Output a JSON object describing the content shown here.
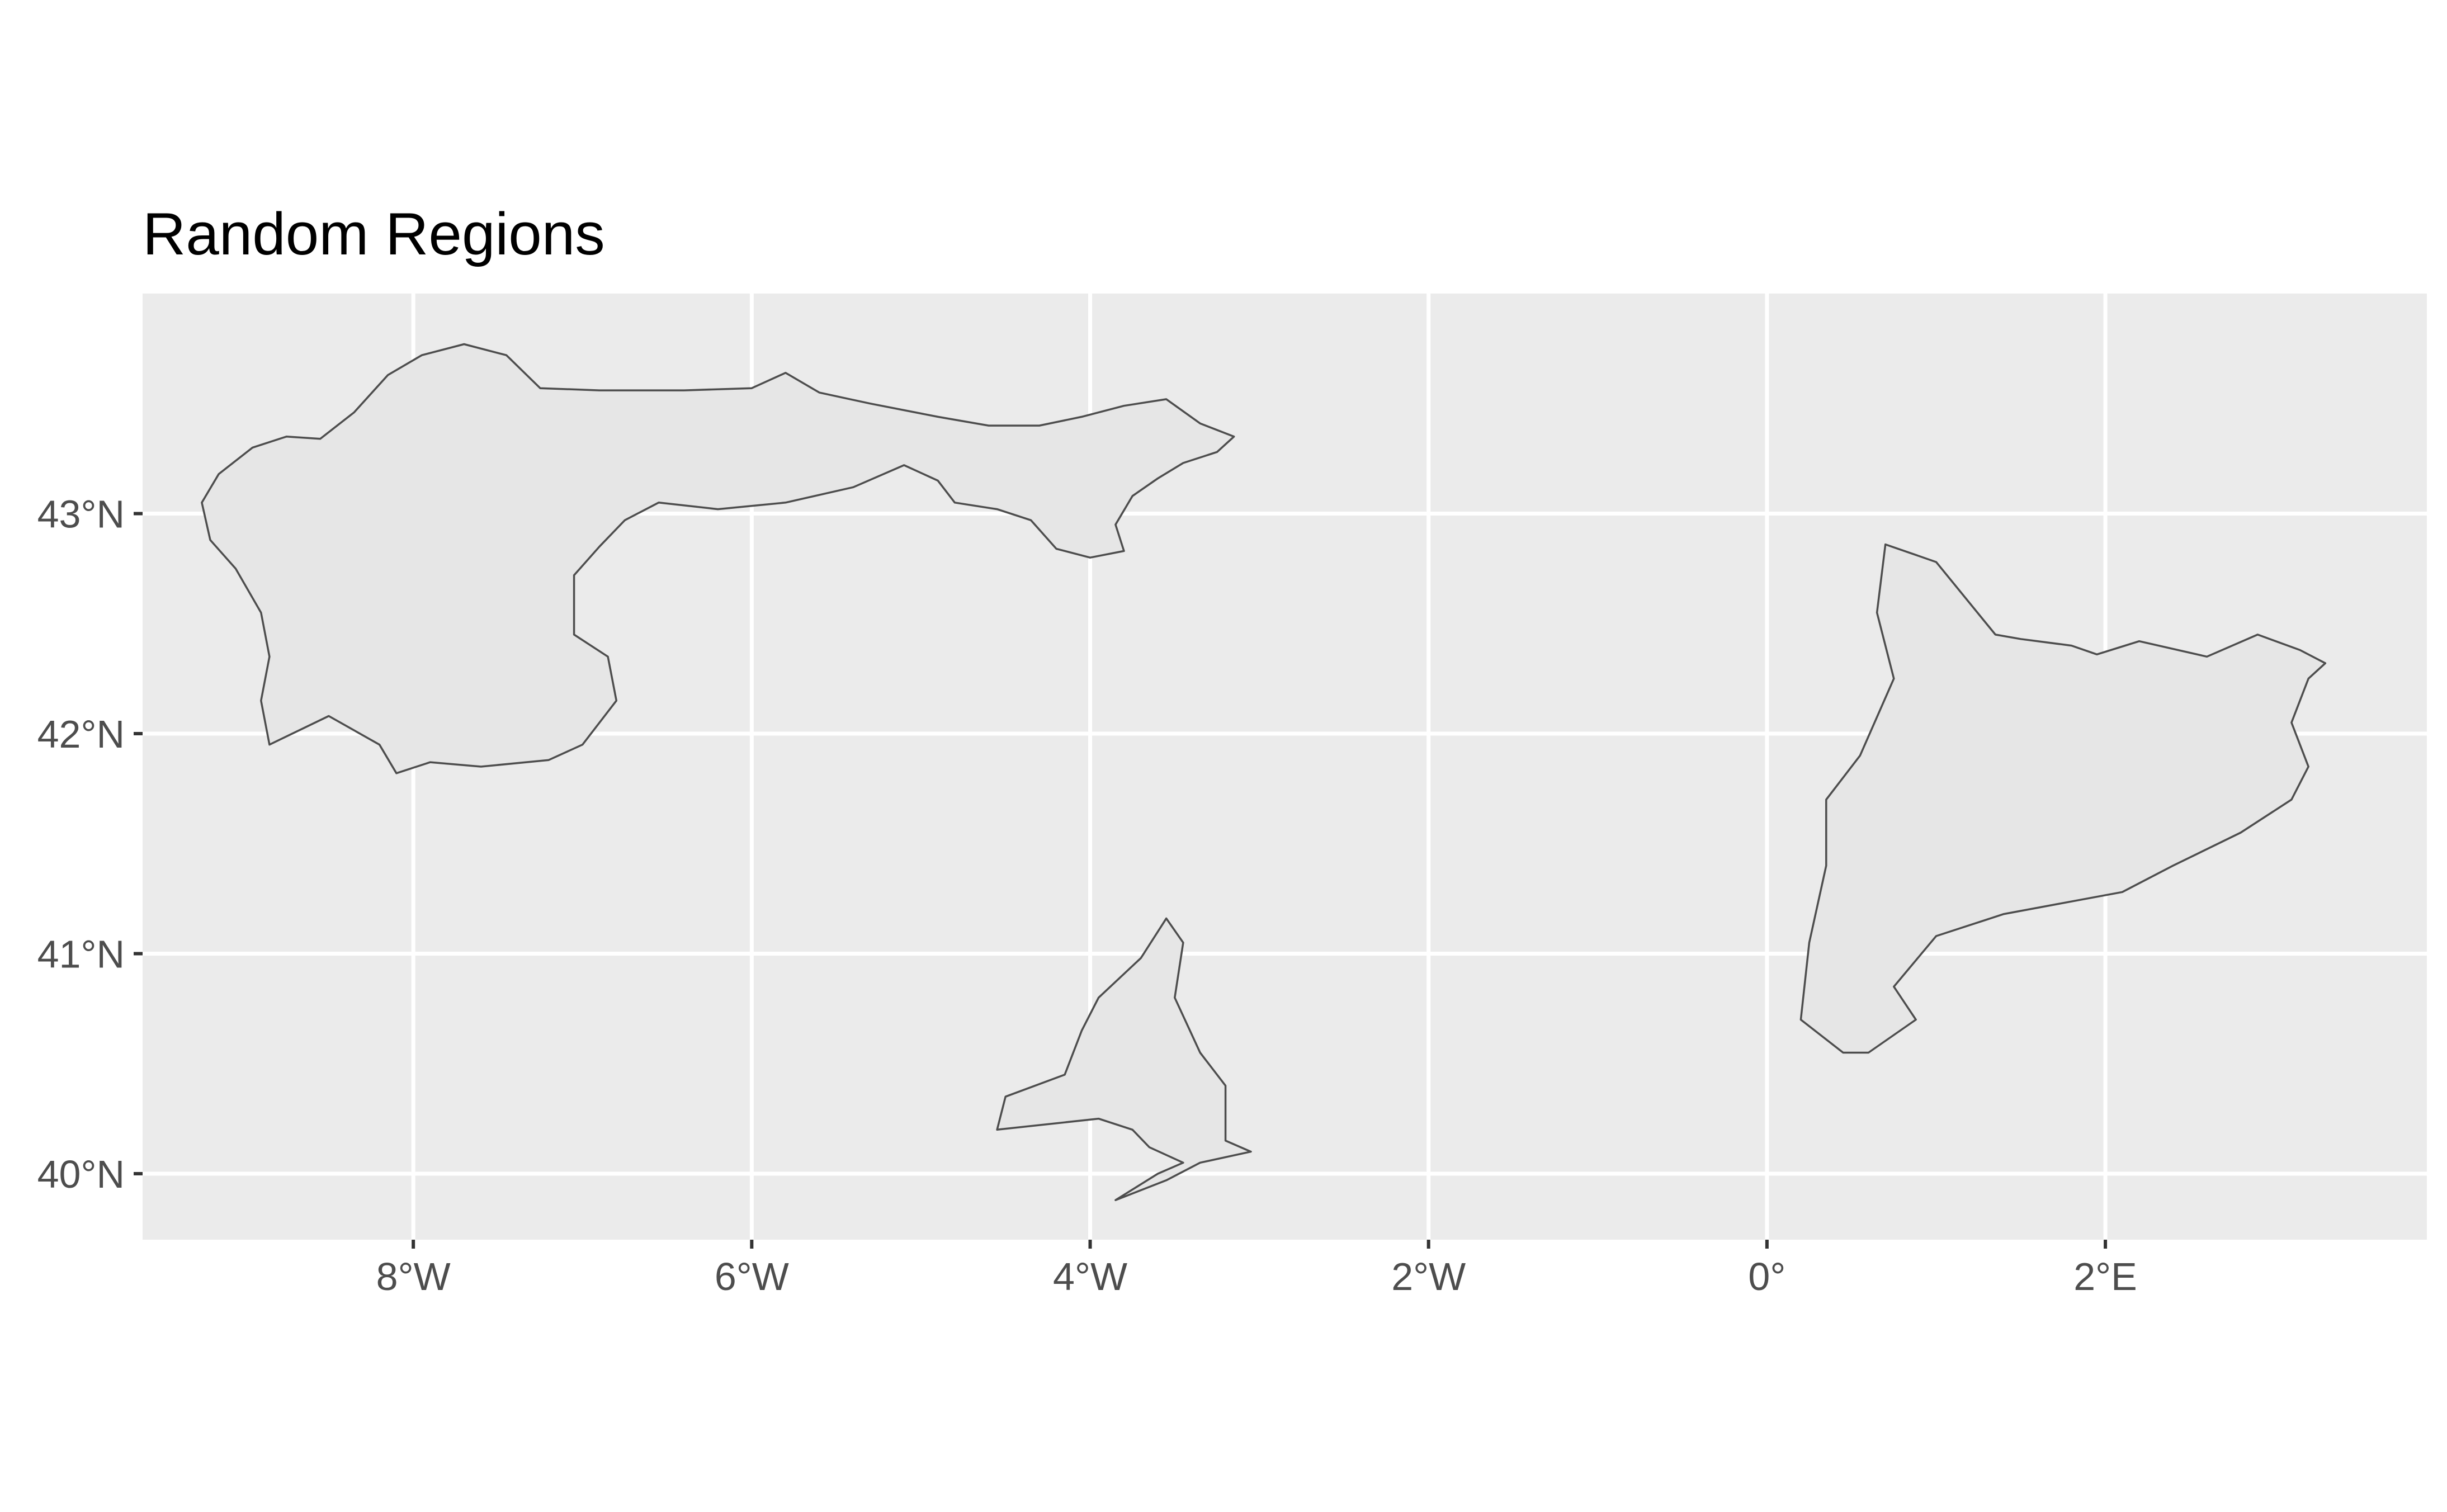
{
  "chart_data": {
    "type": "map",
    "title": "Random Regions",
    "xlim": [
      -9.6,
      3.9
    ],
    "ylim": [
      39.7,
      44.0
    ],
    "x_ticks": [
      {
        "value": -8,
        "label": "8°W"
      },
      {
        "value": -6,
        "label": "6°W"
      },
      {
        "value": -4,
        "label": "4°W"
      },
      {
        "value": -2,
        "label": "2°W"
      },
      {
        "value": 0,
        "label": "0°"
      },
      {
        "value": 2,
        "label": "2°E"
      }
    ],
    "y_ticks": [
      {
        "value": 40,
        "label": "40°N"
      },
      {
        "value": 41,
        "label": "41°N"
      },
      {
        "value": 42,
        "label": "42°N"
      },
      {
        "value": 43,
        "label": "43°N"
      }
    ],
    "grid": true,
    "panel_color": "#ebebeb",
    "region_fill": "#e6e6e6",
    "region_stroke": "#4d4d4d",
    "regions": [
      {
        "id": "northwest",
        "coords": [
          [
            -9.25,
            43.05
          ],
          [
            -9.15,
            43.18
          ],
          [
            -8.95,
            43.3
          ],
          [
            -8.75,
            43.35
          ],
          [
            -8.55,
            43.34
          ],
          [
            -8.35,
            43.46
          ],
          [
            -8.15,
            43.63
          ],
          [
            -7.95,
            43.72
          ],
          [
            -7.7,
            43.77
          ],
          [
            -7.45,
            43.72
          ],
          [
            -7.25,
            43.57
          ],
          [
            -6.9,
            43.56
          ],
          [
            -6.4,
            43.56
          ],
          [
            -6.0,
            43.57
          ],
          [
            -5.8,
            43.64
          ],
          [
            -5.6,
            43.55
          ],
          [
            -5.3,
            43.5
          ],
          [
            -4.9,
            43.44
          ],
          [
            -4.6,
            43.4
          ],
          [
            -4.3,
            43.4
          ],
          [
            -4.05,
            43.44
          ],
          [
            -3.8,
            43.49
          ],
          [
            -3.55,
            43.52
          ],
          [
            -3.35,
            43.41
          ],
          [
            -3.15,
            43.35
          ],
          [
            -3.25,
            43.28
          ],
          [
            -3.45,
            43.23
          ],
          [
            -3.6,
            43.16
          ],
          [
            -3.75,
            43.08
          ],
          [
            -3.85,
            42.95
          ],
          [
            -3.8,
            42.83
          ],
          [
            -4.0,
            42.8
          ],
          [
            -4.2,
            42.84
          ],
          [
            -4.35,
            42.97
          ],
          [
            -4.55,
            43.02
          ],
          [
            -4.8,
            43.05
          ],
          [
            -4.9,
            43.15
          ],
          [
            -5.1,
            43.22
          ],
          [
            -5.4,
            43.12
          ],
          [
            -5.8,
            43.05
          ],
          [
            -6.2,
            43.02
          ],
          [
            -6.55,
            43.05
          ],
          [
            -6.75,
            42.97
          ],
          [
            -6.9,
            42.85
          ],
          [
            -7.05,
            42.72
          ],
          [
            -7.05,
            42.45
          ],
          [
            -6.85,
            42.35
          ],
          [
            -6.8,
            42.15
          ],
          [
            -7.0,
            41.95
          ],
          [
            -7.2,
            41.88
          ],
          [
            -7.6,
            41.85
          ],
          [
            -7.9,
            41.87
          ],
          [
            -8.1,
            41.82
          ],
          [
            -8.2,
            41.95
          ],
          [
            -8.5,
            42.08
          ],
          [
            -8.85,
            41.95
          ],
          [
            -8.9,
            42.15
          ],
          [
            -8.85,
            42.35
          ],
          [
            -8.9,
            42.55
          ],
          [
            -9.05,
            42.75
          ],
          [
            -9.2,
            42.88
          ]
        ]
      },
      {
        "id": "center",
        "coords": [
          [
            -3.95,
            40.25
          ],
          [
            -4.55,
            40.2
          ],
          [
            -4.5,
            40.35
          ],
          [
            -4.15,
            40.45
          ],
          [
            -4.05,
            40.65
          ],
          [
            -3.95,
            40.8
          ],
          [
            -3.7,
            40.98
          ],
          [
            -3.55,
            41.16
          ],
          [
            -3.45,
            41.05
          ],
          [
            -3.5,
            40.8
          ],
          [
            -3.35,
            40.55
          ],
          [
            -3.2,
            40.4
          ],
          [
            -3.2,
            40.15
          ],
          [
            -3.05,
            40.1
          ],
          [
            -3.35,
            40.05
          ],
          [
            -3.55,
            39.97
          ],
          [
            -3.85,
            39.88
          ],
          [
            -3.6,
            40.0
          ],
          [
            -3.45,
            40.05
          ],
          [
            -3.65,
            40.12
          ],
          [
            -3.75,
            40.2
          ]
        ]
      },
      {
        "id": "northeast",
        "coords": [
          [
            0.7,
            42.86
          ],
          [
            0.85,
            42.82
          ],
          [
            1.0,
            42.78
          ],
          [
            1.35,
            42.45
          ],
          [
            1.5,
            42.43
          ],
          [
            1.8,
            42.4
          ],
          [
            1.95,
            42.36
          ],
          [
            2.2,
            42.42
          ],
          [
            2.6,
            42.35
          ],
          [
            2.9,
            42.45
          ],
          [
            3.15,
            42.38
          ],
          [
            3.3,
            42.32
          ],
          [
            3.2,
            42.25
          ],
          [
            3.1,
            42.05
          ],
          [
            3.2,
            41.85
          ],
          [
            3.1,
            41.7
          ],
          [
            2.8,
            41.55
          ],
          [
            2.4,
            41.4
          ],
          [
            2.1,
            41.28
          ],
          [
            1.4,
            41.18
          ],
          [
            1.0,
            41.08
          ],
          [
            0.75,
            40.85
          ],
          [
            0.88,
            40.7
          ],
          [
            0.6,
            40.55
          ],
          [
            0.45,
            40.55
          ],
          [
            0.2,
            40.7
          ],
          [
            0.25,
            41.05
          ],
          [
            0.35,
            41.4
          ],
          [
            0.35,
            41.7
          ],
          [
            0.55,
            41.9
          ],
          [
            0.75,
            42.25
          ],
          [
            0.65,
            42.55
          ]
        ]
      }
    ]
  }
}
